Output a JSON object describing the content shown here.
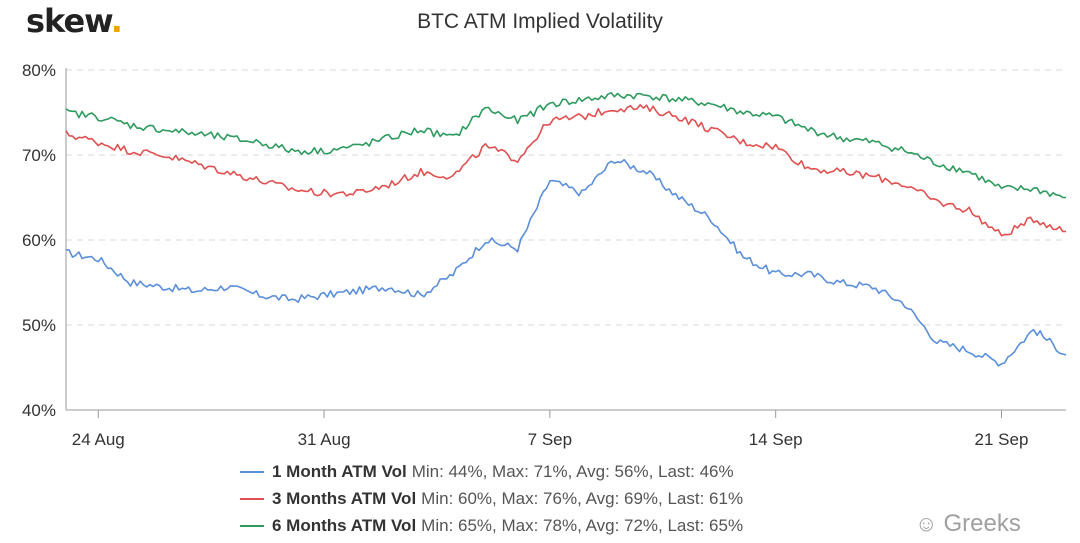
{
  "brand": {
    "name": "skew",
    "dot": "."
  },
  "watermark": {
    "icon": "wechat-icon",
    "text": "Greeks"
  },
  "chart_data": {
    "type": "line",
    "title": "BTC ATM Implied Volatility",
    "xlabel": "",
    "ylabel": "",
    "ylim": [
      40,
      80
    ],
    "yticks": [
      {
        "v": 40,
        "label": "40%"
      },
      {
        "v": 50,
        "label": "50%"
      },
      {
        "v": 60,
        "label": "60%"
      },
      {
        "v": 70,
        "label": "70%"
      },
      {
        "v": 80,
        "label": "80%"
      }
    ],
    "xlim": [
      "2020-08-23",
      "2020-09-23"
    ],
    "xticks": [
      {
        "date": "2020-08-24",
        "label": "24 Aug"
      },
      {
        "date": "2020-08-31",
        "label": "31 Aug"
      },
      {
        "date": "2020-09-07",
        "label": "7 Sep"
      },
      {
        "date": "2020-09-14",
        "label": "14 Sep"
      },
      {
        "date": "2020-09-21",
        "label": "21 Sep"
      }
    ],
    "grid": "horizontal-dashed",
    "legend_position": "bottom",
    "x": [
      "2020-08-23",
      "2020-08-24",
      "2020-08-25",
      "2020-08-26",
      "2020-08-27",
      "2020-08-28",
      "2020-08-29",
      "2020-08-30",
      "2020-08-31",
      "2020-09-01",
      "2020-09-02",
      "2020-09-03",
      "2020-09-04",
      "2020-09-05",
      "2020-09-06",
      "2020-09-07",
      "2020-09-08",
      "2020-09-09",
      "2020-09-10",
      "2020-09-11",
      "2020-09-12",
      "2020-09-13",
      "2020-09-14",
      "2020-09-15",
      "2020-09-16",
      "2020-09-17",
      "2020-09-18",
      "2020-09-19",
      "2020-09-20",
      "2020-09-21",
      "2020-09-22",
      "2020-09-23"
    ],
    "series": [
      {
        "name": "1 Month ATM Vol",
        "color": "#5b8fd9",
        "stats": "Min: 44%, Max: 71%, Avg: 56%, Last: 46%",
        "values": [
          58.5,
          57.8,
          55.0,
          54.5,
          54.0,
          54.5,
          53.5,
          53.0,
          53.5,
          54.0,
          54.5,
          53.5,
          56.0,
          60.0,
          59.0,
          67.0,
          65.5,
          69.5,
          68.0,
          65.0,
          62.5,
          58.0,
          56.0,
          56.0,
          55.0,
          54.5,
          52.5,
          48.0,
          47.0,
          45.5,
          49.5,
          46.5
        ]
      },
      {
        "name": "3 Months ATM Vol",
        "color": "#e05050",
        "stats": "Min: 60%, Max: 76%, Avg: 69%, Last: 61%",
        "values": [
          72.5,
          71.5,
          70.5,
          70.0,
          69.0,
          68.0,
          67.0,
          66.0,
          65.5,
          65.5,
          66.5,
          68.0,
          67.5,
          71.0,
          69.5,
          74.0,
          74.5,
          75.5,
          75.5,
          74.5,
          73.0,
          71.5,
          71.0,
          68.5,
          68.0,
          67.5,
          66.5,
          64.5,
          63.5,
          60.5,
          62.5,
          61.0
        ]
      },
      {
        "name": "6 Months ATM Vol",
        "color": "#2e9a5e",
        "stats": "Min: 65%, Max: 78%, Avg: 72%, Last: 65%",
        "values": [
          75.0,
          74.5,
          73.5,
          73.0,
          72.5,
          72.0,
          71.5,
          70.5,
          70.5,
          71.0,
          72.0,
          73.0,
          72.0,
          75.5,
          74.0,
          76.0,
          76.5,
          77.0,
          77.0,
          76.5,
          76.0,
          75.0,
          74.5,
          73.0,
          72.0,
          71.5,
          70.5,
          69.0,
          68.0,
          66.0,
          66.0,
          65.0
        ]
      }
    ]
  }
}
